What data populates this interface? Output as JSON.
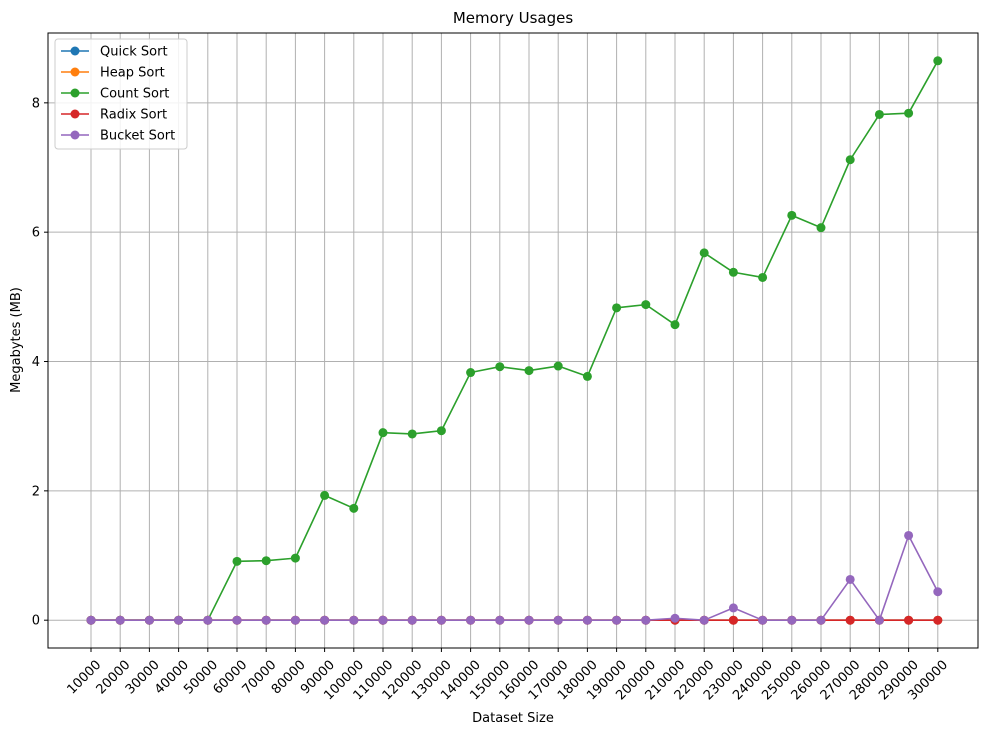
{
  "chart_data": {
    "type": "line",
    "title": "Memory Usages",
    "xlabel": "Dataset Size",
    "ylabel": "Megabytes (MB)",
    "grid": true,
    "legend_position": "top-left",
    "ylim": [
      -0.43,
      9.08
    ],
    "yticks": [
      0,
      2,
      4,
      6,
      8
    ],
    "categories": [
      "10000",
      "20000",
      "30000",
      "40000",
      "50000",
      "60000",
      "70000",
      "80000",
      "90000",
      "100000",
      "110000",
      "120000",
      "130000",
      "140000",
      "150000",
      "160000",
      "170000",
      "180000",
      "190000",
      "200000",
      "210000",
      "220000",
      "230000",
      "240000",
      "250000",
      "260000",
      "270000",
      "280000",
      "290000",
      "300000"
    ],
    "series": [
      {
        "name": "Quick Sort",
        "color": "#1f77b4",
        "values": [
          0,
          0,
          0,
          0,
          0,
          0,
          0,
          0,
          0,
          0,
          0,
          0,
          0,
          0,
          0,
          0,
          0,
          0,
          0,
          0,
          0,
          0,
          0,
          0,
          0,
          0,
          0,
          0,
          0,
          0
        ]
      },
      {
        "name": "Heap Sort",
        "color": "#ff7f0e",
        "values": [
          0,
          0,
          0,
          0,
          0,
          0,
          0,
          0,
          0,
          0,
          0,
          0,
          0,
          0,
          0,
          0,
          0,
          0,
          0,
          0,
          0,
          0,
          0,
          0,
          0,
          0,
          0,
          0,
          0,
          0
        ]
      },
      {
        "name": "Count Sort",
        "color": "#2ca02c",
        "values": [
          0,
          0,
          0,
          0,
          0,
          0.91,
          0.92,
          0.96,
          1.93,
          1.73,
          2.9,
          2.88,
          2.93,
          3.83,
          3.92,
          3.86,
          3.93,
          3.77,
          4.83,
          4.88,
          4.57,
          5.68,
          5.38,
          5.3,
          6.26,
          6.07,
          7.12,
          7.82,
          7.84,
          8.65
        ]
      },
      {
        "name": "Radix Sort",
        "color": "#d62728",
        "values": [
          0,
          0,
          0,
          0,
          0,
          0,
          0,
          0,
          0,
          0,
          0,
          0,
          0,
          0,
          0,
          0,
          0,
          0,
          0,
          0,
          0,
          0,
          0,
          0,
          0,
          0,
          0,
          0,
          0,
          0
        ]
      },
      {
        "name": "Bucket Sort",
        "color": "#9467bd",
        "values": [
          0,
          0,
          0,
          0,
          0,
          0,
          0,
          0,
          0,
          0,
          0,
          0,
          0,
          0,
          0,
          0,
          0,
          0,
          0,
          0,
          0.03,
          0,
          0.19,
          0,
          0,
          0,
          0.63,
          0,
          1.31,
          0.44
        ]
      }
    ]
  }
}
